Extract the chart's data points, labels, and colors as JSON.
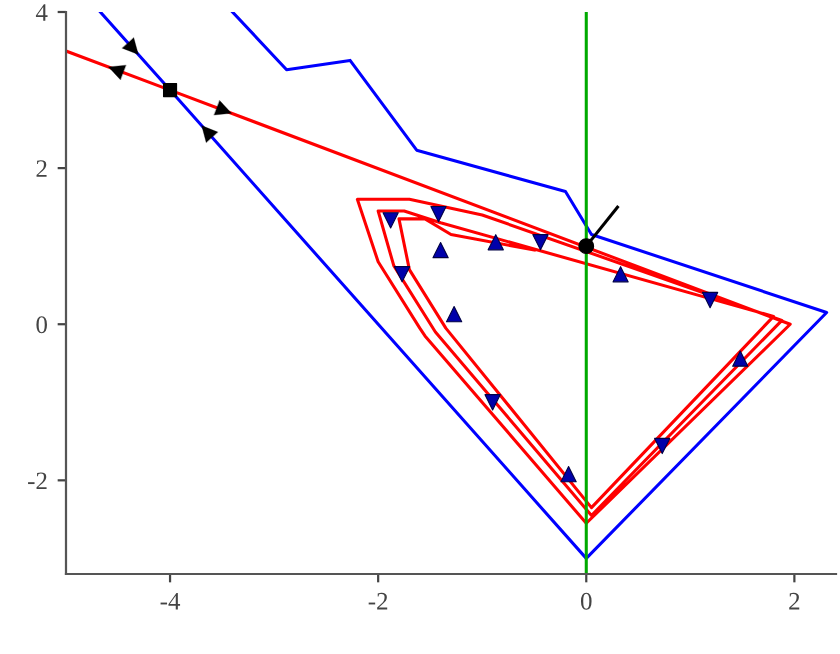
{
  "chart_data": {
    "type": "line",
    "xlim": [
      -5,
      2.4
    ],
    "ylim": [
      -3.2,
      4
    ],
    "xticks": [
      -4,
      -2,
      0,
      2
    ],
    "yticks": [
      -2,
      0,
      2,
      4
    ],
    "grid": false,
    "legend": false,
    "series": [
      {
        "color": "#0000ff",
        "x": [
          -4.67,
          -4,
          0,
          2.31,
          0.05,
          -0.2,
          -1.63,
          -2.27,
          -2.88,
          -3.4
        ],
        "values": [
          4,
          3,
          -3,
          0.15,
          1.15,
          1.7,
          2.23,
          3.38,
          3.26,
          4
        ]
      },
      {
        "color": "#ff0000",
        "x": [
          -5,
          -4,
          1.96,
          0.0,
          -1.55,
          -1.6,
          -2.0,
          -2.2,
          -1.7,
          -1.0,
          1.88,
          0.05,
          -1.45,
          -1.85,
          -2.0,
          -1.75,
          -1.4,
          1.8,
          0.05,
          -1.35,
          -1.7,
          -1.8,
          -1.55,
          -1.3,
          -0.5
        ],
        "values": [
          3.5,
          3,
          0.0,
          -2.55,
          -0.15,
          -0.05,
          0.8,
          1.6,
          1.6,
          1.4,
          0.05,
          -2.45,
          -0.1,
          0.75,
          1.45,
          1.45,
          1.3,
          0.1,
          -2.35,
          -0.05,
          0.7,
          1.35,
          1.35,
          1.15,
          0.95
        ]
      },
      {
        "color": "#00aa00",
        "x": [
          0,
          0
        ],
        "values": [
          -3.2,
          4
        ]
      },
      {
        "color": "#000000",
        "x": [
          0,
          0.3
        ],
        "values": [
          1.0,
          1.5
        ]
      },
      {
        "type": "scatter",
        "color": "#0000aa",
        "marker": "triangle",
        "x": [
          -1.4,
          -0.87,
          0.33,
          -1.27,
          1.48,
          -0.17
        ],
        "values": [
          0.95,
          1.05,
          0.64,
          0.13,
          -0.44,
          -1.92
        ]
      },
      {
        "type": "scatter",
        "color": "#0000aa",
        "marker": "triangle_down",
        "x": [
          -1.42,
          -1.88,
          -0.44,
          1.19,
          -1.77,
          -0.9,
          0.73
        ],
        "values": [
          1.41,
          1.33,
          1.05,
          0.31,
          0.64,
          -1.0,
          -1.56
        ]
      },
      {
        "type": "scatter",
        "color": "#000000",
        "marker": "square",
        "x": [
          -4
        ],
        "values": [
          3
        ]
      },
      {
        "type": "scatter",
        "color": "#000000",
        "marker": "circle",
        "x": [
          0
        ],
        "values": [
          1.0
        ]
      }
    ]
  }
}
